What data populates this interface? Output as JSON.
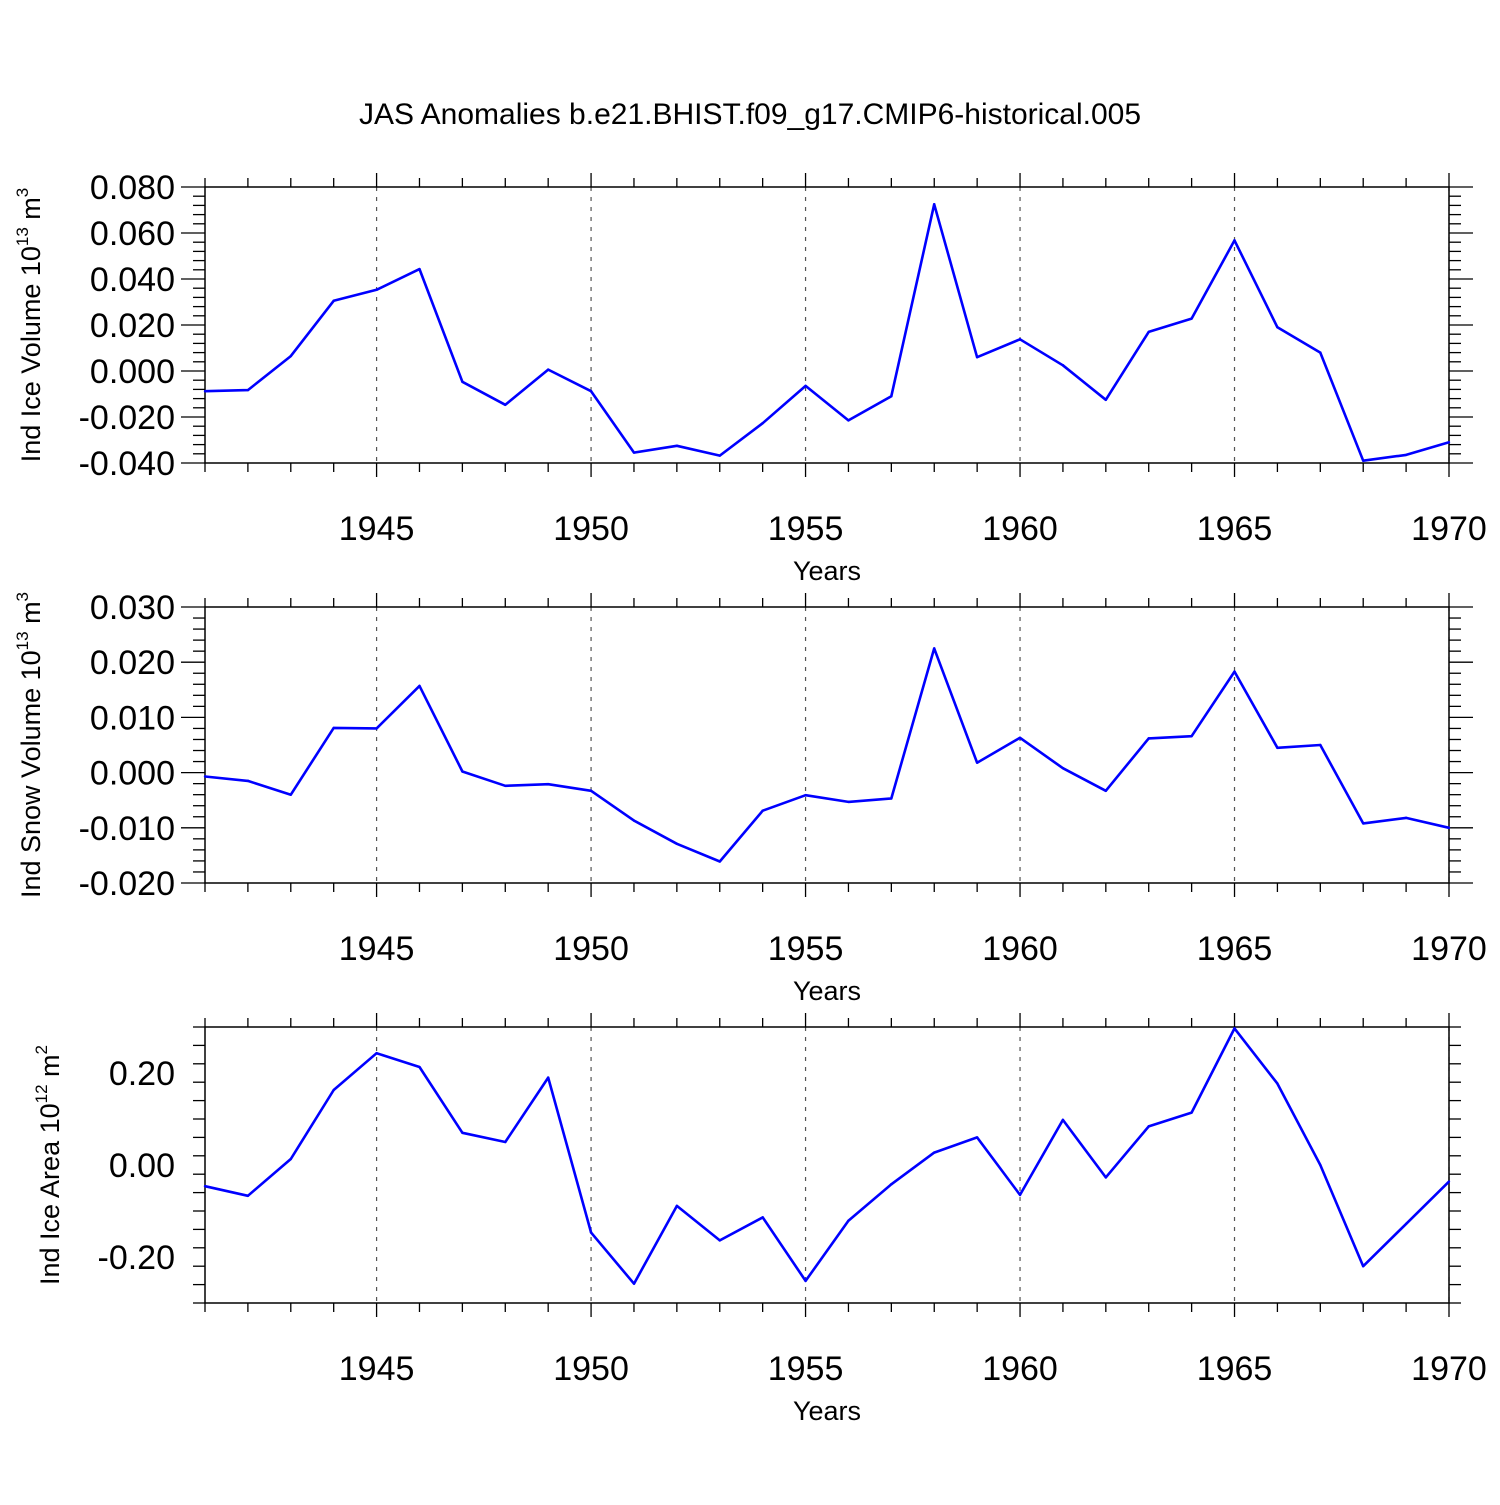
{
  "title": "JAS Anomalies b.e21.BHIST.f09_g17.CMIP6-historical.005",
  "colors": {
    "line": "#0000ff",
    "axis": "#000000",
    "grid": "#555555"
  },
  "chart_data": [
    {
      "type": "line",
      "ylabel": {
        "text": "Ind Ice Volume 10",
        "sup": "13",
        "unit": " m",
        "unit_sup": "3"
      },
      "xlabel": "Years",
      "xlim": [
        1941,
        1970
      ],
      "ylim": [
        -0.04,
        0.08
      ],
      "yticks": [
        -0.04,
        -0.02,
        0.0,
        0.02,
        0.04,
        0.06,
        0.08
      ],
      "ytick_labels": [
        "-0.040",
        "-0.020",
        "0.000",
        "0.020",
        "0.040",
        "0.060",
        "0.080"
      ],
      "xticks": [
        1945,
        1950,
        1955,
        1960,
        1965,
        1970
      ],
      "xtick_labels": [
        "1945",
        "1950",
        "1955",
        "1960",
        "1965",
        "1970"
      ],
      "x": [
        1941,
        1942,
        1943,
        1944,
        1945,
        1946,
        1947,
        1948,
        1949,
        1950,
        1951,
        1952,
        1953,
        1954,
        1955,
        1956,
        1957,
        1958,
        1959,
        1960,
        1961,
        1962,
        1963,
        1964,
        1965,
        1966,
        1967,
        1968,
        1969,
        1970
      ],
      "values": [
        -0.0088,
        -0.0083,
        0.0065,
        0.0305,
        0.0353,
        0.0443,
        -0.0047,
        -0.0147,
        0.0006,
        -0.0088,
        -0.0355,
        -0.0325,
        -0.0368,
        -0.0227,
        -0.0065,
        -0.0215,
        -0.011,
        0.0725,
        0.006,
        0.0138,
        0.0025,
        -0.0125,
        0.017,
        0.0228,
        0.0568,
        0.019,
        0.008,
        -0.039,
        -0.0365,
        -0.031
      ]
    },
    {
      "type": "line",
      "ylabel": {
        "text": "Ind Snow Volume 10",
        "sup": "13",
        "unit": " m",
        "unit_sup": "3"
      },
      "xlabel": "Years",
      "xlim": [
        1941,
        1970
      ],
      "ylim": [
        -0.02,
        0.03
      ],
      "yticks": [
        -0.02,
        -0.01,
        0.0,
        0.01,
        0.02,
        0.03
      ],
      "ytick_labels": [
        "-0.020",
        "-0.010",
        "0.000",
        "0.010",
        "0.020",
        "0.030"
      ],
      "xticks": [
        1945,
        1950,
        1955,
        1960,
        1965,
        1970
      ],
      "xtick_labels": [
        "1945",
        "1950",
        "1955",
        "1960",
        "1965",
        "1970"
      ],
      "x": [
        1941,
        1942,
        1943,
        1944,
        1945,
        1946,
        1947,
        1948,
        1949,
        1950,
        1951,
        1952,
        1953,
        1954,
        1955,
        1956,
        1957,
        1958,
        1959,
        1960,
        1961,
        1962,
        1963,
        1964,
        1965,
        1966,
        1967,
        1968,
        1969,
        1970
      ],
      "values": [
        -0.0007,
        -0.0015,
        -0.004,
        0.0081,
        0.008,
        0.0157,
        0.0002,
        -0.0024,
        -0.0021,
        -0.0033,
        -0.0087,
        -0.0129,
        -0.0161,
        -0.0069,
        -0.0041,
        -0.0053,
        -0.0047,
        0.0225,
        0.0018,
        0.0063,
        0.0008,
        -0.0033,
        0.0062,
        0.0066,
        0.0183,
        0.0045,
        0.005,
        -0.0092,
        -0.0082,
        -0.01
      ]
    },
    {
      "type": "line",
      "ylabel": {
        "text": "Ind Ice Area 10",
        "sup": "12",
        "unit": " m",
        "unit_sup": "2"
      },
      "xlabel": "Years",
      "xlim": [
        1941,
        1970
      ],
      "ylim": [
        -0.3,
        0.3
      ],
      "yticks": [
        -0.2,
        0.0,
        0.2
      ],
      "ytick_labels": [
        "-0.20",
        "0.00",
        "0.20"
      ],
      "xticks": [
        1945,
        1950,
        1955,
        1960,
        1965,
        1970
      ],
      "xtick_labels": [
        "1945",
        "1950",
        "1955",
        "1960",
        "1965",
        "1970"
      ],
      "x": [
        1941,
        1942,
        1943,
        1944,
        1945,
        1946,
        1947,
        1948,
        1949,
        1950,
        1951,
        1952,
        1953,
        1954,
        1955,
        1956,
        1957,
        1958,
        1959,
        1960,
        1961,
        1962,
        1963,
        1964,
        1965,
        1966,
        1967,
        1968,
        1969,
        1970
      ],
      "values": [
        -0.046,
        -0.067,
        0.013,
        0.163,
        0.243,
        0.213,
        0.07,
        0.05,
        0.19,
        -0.147,
        -0.258,
        -0.089,
        -0.164,
        -0.114,
        -0.252,
        -0.121,
        -0.042,
        0.027,
        0.06,
        -0.065,
        0.098,
        -0.027,
        0.084,
        0.114,
        0.297,
        0.177,
        0.0,
        -0.22,
        -0.128,
        -0.036
      ]
    }
  ]
}
